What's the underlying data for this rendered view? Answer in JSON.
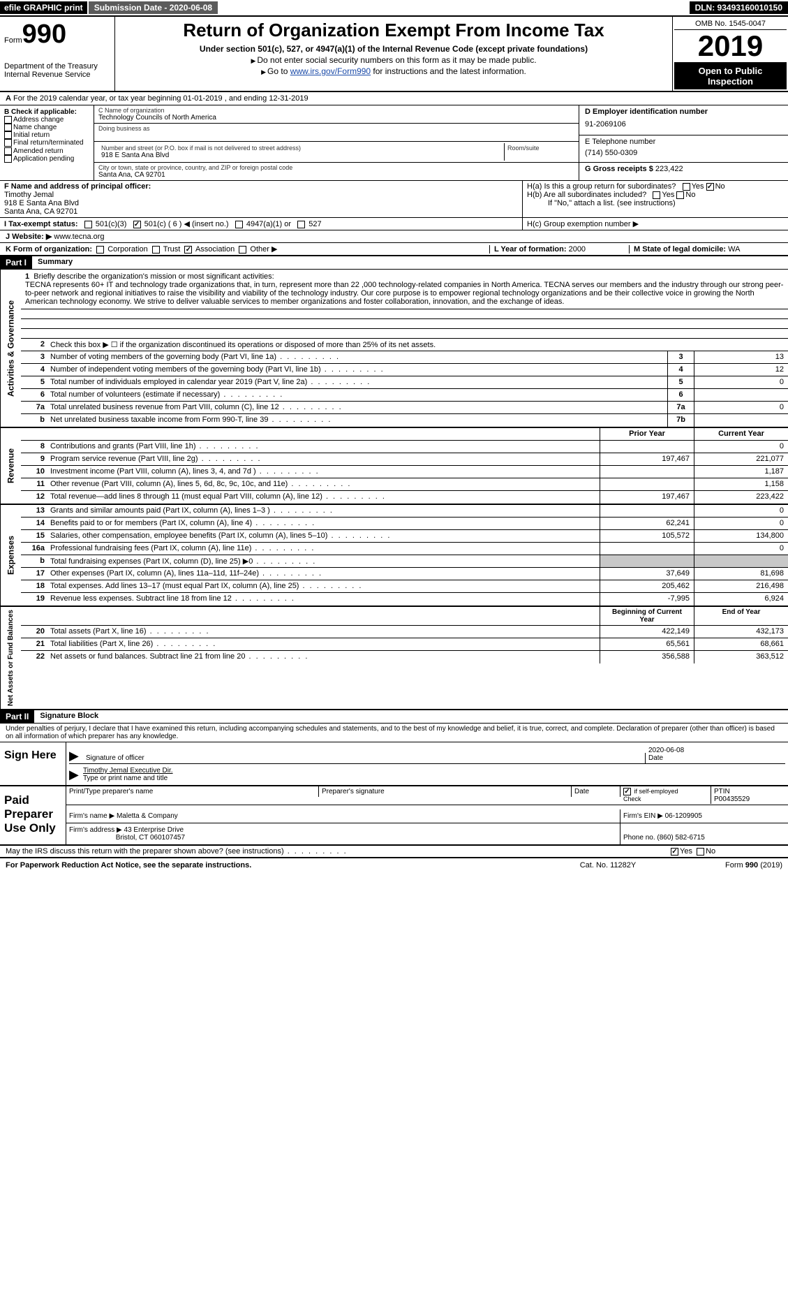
{
  "topbar": {
    "efile": "efile GRAPHIC print",
    "submission": "Submission Date - 2020-06-08",
    "dln": "DLN: 93493160010150"
  },
  "header": {
    "form_label": "Form",
    "form_no": "990",
    "dept": "Department of the Treasury\nInternal Revenue Service",
    "title": "Return of Organization Exempt From Income Tax",
    "sub1": "Under section 501(c), 527, or 4947(a)(1) of the Internal Revenue Code (except private foundations)",
    "sub2": "Do not enter social security numbers on this form as it may be made public.",
    "sub3_pre": "Go to ",
    "sub3_link": "www.irs.gov/Form990",
    "sub3_post": " for instructions and the latest information.",
    "omb": "OMB No. 1545-0047",
    "year": "2019",
    "open": "Open to Public Inspection"
  },
  "row_a": "For the 2019 calendar year, or tax year beginning 01-01-2019    , and ending 12-31-2019",
  "box_b": {
    "title": "B Check if applicable:",
    "items": [
      "Address change",
      "Name change",
      "Initial return",
      "Final return/terminated",
      "Amended return",
      "Application pending"
    ]
  },
  "box_c": {
    "name_lbl": "C Name of organization",
    "name": "Technology Councils of North America",
    "dba_lbl": "Doing business as",
    "addr_lbl": "Number and street (or P.O. box if mail is not delivered to street address)",
    "addr": "918 E Santa Ana Blvd",
    "room_lbl": "Room/suite",
    "city_lbl": "City or town, state or province, country, and ZIP or foreign postal code",
    "city": "Santa Ana, CA   92701"
  },
  "box_d": {
    "lbl": "D Employer identification number",
    "val": "91-2069106"
  },
  "box_e": {
    "lbl": "E Telephone number",
    "val": "(714) 550-0309"
  },
  "box_g": {
    "lbl": "G Gross receipts $",
    "val": "223,422"
  },
  "box_f": {
    "lbl": "F  Name and address of principal officer:",
    "name": "Timothy Jemal",
    "addr1": "918 E Santa Ana Blvd",
    "addr2": "Santa Ana, CA   92701"
  },
  "box_h": {
    "ha": "H(a)  Is this a group return for subordinates?",
    "hb": "H(b)  Are all subordinates included?",
    "hb_note": "If \"No,\" attach a list. (see instructions)",
    "hc": "H(c)  Group exemption number ▶"
  },
  "box_i": {
    "lbl": "I   Tax-exempt status:",
    "opts": [
      "501(c)(3)",
      "501(c) ( 6 ) ◀ (insert no.)",
      "4947(a)(1) or",
      "527"
    ]
  },
  "box_j": {
    "lbl": "J  Website: ▶",
    "val": "www.tecna.org"
  },
  "box_k": {
    "lbl": "K Form of organization:",
    "opts": [
      "Corporation",
      "Trust",
      "Association",
      "Other ▶"
    ]
  },
  "box_l": {
    "lbl": "L Year of formation:",
    "val": "2000"
  },
  "box_m": {
    "lbl": "M State of legal domicile:",
    "val": "WA"
  },
  "part1": {
    "hdr": "Part I",
    "title": "Summary"
  },
  "summary": {
    "line1_lbl": "Briefly describe the organization's mission or most significant activities:",
    "mission": "TECNA represents 60+ IT and technology trade organizations that, in turn, represent more than 22 ,000 technology-related companies in North America. TECNA serves our members and the industry through our strong peer-to-peer network and regional initiatives to raise the visibility and viability of the technology industry. Our core purpose is to empower regional technology organizations and be their collective voice in growing the North American technology economy. We strive to deliver valuable services to member organizations and foster collaboration, innovation, and the exchange of ideas.",
    "line2": "Check this box ▶ ☐ if the organization discontinued its operations or disposed of more than 25% of its net assets.",
    "rows_gov": [
      {
        "n": "3",
        "t": "Number of voting members of the governing body (Part VI, line 1a)",
        "box": "3",
        "v": "13"
      },
      {
        "n": "4",
        "t": "Number of independent voting members of the governing body (Part VI, line 1b)",
        "box": "4",
        "v": "12"
      },
      {
        "n": "5",
        "t": "Total number of individuals employed in calendar year 2019 (Part V, line 2a)",
        "box": "5",
        "v": "0"
      },
      {
        "n": "6",
        "t": "Total number of volunteers (estimate if necessary)",
        "box": "6",
        "v": ""
      },
      {
        "n": "7a",
        "t": "Total unrelated business revenue from Part VIII, column (C), line 12",
        "box": "7a",
        "v": "0"
      },
      {
        "n": "b",
        "t": "Net unrelated business taxable income from Form 990-T, line 39",
        "box": "7b",
        "v": ""
      }
    ],
    "col_prior": "Prior Year",
    "col_curr": "Current Year",
    "rev": [
      {
        "n": "8",
        "t": "Contributions and grants (Part VIII, line 1h)",
        "p": "",
        "c": "0"
      },
      {
        "n": "9",
        "t": "Program service revenue (Part VIII, line 2g)",
        "p": "197,467",
        "c": "221,077"
      },
      {
        "n": "10",
        "t": "Investment income (Part VIII, column (A), lines 3, 4, and 7d )",
        "p": "",
        "c": "1,187"
      },
      {
        "n": "11",
        "t": "Other revenue (Part VIII, column (A), lines 5, 6d, 8c, 9c, 10c, and 11e)",
        "p": "",
        "c": "1,158"
      },
      {
        "n": "12",
        "t": "Total revenue—add lines 8 through 11 (must equal Part VIII, column (A), line 12)",
        "p": "197,467",
        "c": "223,422"
      }
    ],
    "exp": [
      {
        "n": "13",
        "t": "Grants and similar amounts paid (Part IX, column (A), lines 1–3 )",
        "p": "",
        "c": "0"
      },
      {
        "n": "14",
        "t": "Benefits paid to or for members (Part IX, column (A), line 4)",
        "p": "62,241",
        "c": "0"
      },
      {
        "n": "15",
        "t": "Salaries, other compensation, employee benefits (Part IX, column (A), lines 5–10)",
        "p": "105,572",
        "c": "134,800"
      },
      {
        "n": "16a",
        "t": "Professional fundraising fees (Part IX, column (A), line 11e)",
        "p": "",
        "c": "0"
      },
      {
        "n": "b",
        "t": "Total fundraising expenses (Part IX, column (D), line 25) ▶0",
        "p": "",
        "c": "",
        "shaded": true
      },
      {
        "n": "17",
        "t": "Other expenses (Part IX, column (A), lines 11a–11d, 11f–24e)",
        "p": "37,649",
        "c": "81,698"
      },
      {
        "n": "18",
        "t": "Total expenses. Add lines 13–17 (must equal Part IX, column (A), line 25)",
        "p": "205,462",
        "c": "216,498"
      },
      {
        "n": "19",
        "t": "Revenue less expenses. Subtract line 18 from line 12",
        "p": "-7,995",
        "c": "6,924"
      }
    ],
    "col_beg": "Beginning of Current Year",
    "col_end": "End of Year",
    "net": [
      {
        "n": "20",
        "t": "Total assets (Part X, line 16)",
        "p": "422,149",
        "c": "432,173"
      },
      {
        "n": "21",
        "t": "Total liabilities (Part X, line 26)",
        "p": "65,561",
        "c": "68,661"
      },
      {
        "n": "22",
        "t": "Net assets or fund balances. Subtract line 21 from line 20",
        "p": "356,588",
        "c": "363,512"
      }
    ]
  },
  "vlabels": {
    "gov": "Activities & Governance",
    "rev": "Revenue",
    "exp": "Expenses",
    "net": "Net Assets or Fund Balances"
  },
  "part2": {
    "hdr": "Part II",
    "title": "Signature Block"
  },
  "sig": {
    "perjury": "Under penalties of perjury, I declare that I have examined this return, including accompanying schedules and statements, and to the best of my knowledge and belief, it is true, correct, and complete. Declaration of preparer (other than officer) is based on all information of which preparer has any knowledge.",
    "sign_here": "Sign Here",
    "sig_officer": "Signature of officer",
    "date": "Date",
    "date_val": "2020-06-08",
    "name_title": "Timothy Jemal  Executive Dir.",
    "name_lbl": "Type or print name and title",
    "paid": "Paid Preparer Use Only",
    "p_name_lbl": "Print/Type preparer's name",
    "p_sig_lbl": "Preparer's signature",
    "p_date_lbl": "Date",
    "p_check": "Check ☑ if self-employed",
    "ptin_lbl": "PTIN",
    "ptin": "P00435529",
    "firm_name_lbl": "Firm's name    ▶",
    "firm_name": "Maletta & Company",
    "firm_ein_lbl": "Firm's EIN ▶",
    "firm_ein": "06-1209905",
    "firm_addr_lbl": "Firm's address ▶",
    "firm_addr1": "43 Enterprise Drive",
    "firm_addr2": "Bristol, CT  060107457",
    "firm_phone_lbl": "Phone no.",
    "firm_phone": "(860) 582-6715",
    "discuss": "May the IRS discuss this return with the preparer shown above? (see instructions)"
  },
  "footer": {
    "paperwork": "For Paperwork Reduction Act Notice, see the separate instructions.",
    "cat": "Cat. No. 11282Y",
    "form": "Form 990 (2019)"
  },
  "colors": {
    "black": "#000000",
    "white": "#ffffff",
    "link": "#1a4aa8",
    "shade": "#c8c8c8",
    "gray": "#5b5b5b"
  }
}
